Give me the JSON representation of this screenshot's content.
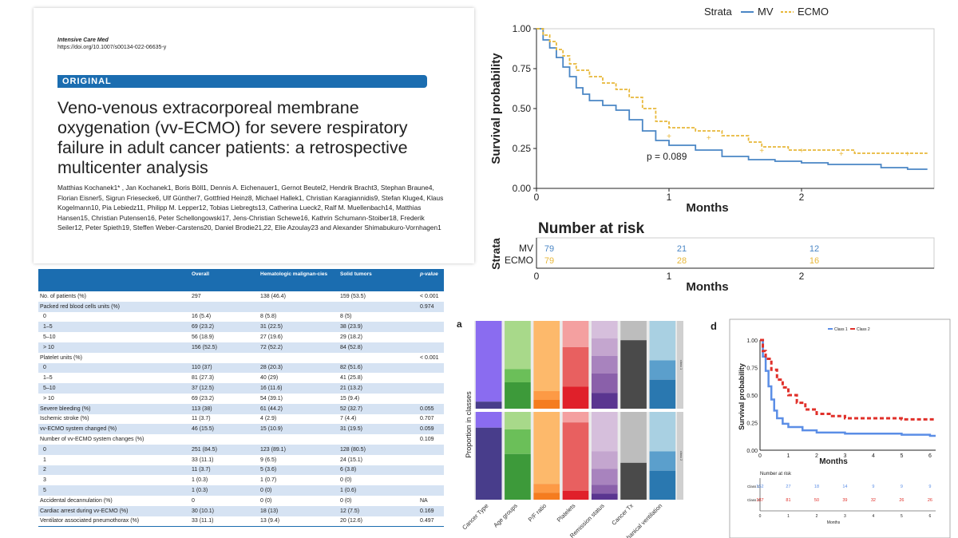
{
  "paper": {
    "journal": "Intensive Care Med",
    "doi": "https://doi.org/10.1007/s00134-022-06635-y",
    "article_type": "ORIGINAL",
    "title": "Veno-venous extracorporeal membrane oxygenation (vv-ECMO) for severe respiratory failure in adult cancer patients: a retrospective multicenter analysis",
    "authors": "Matthias Kochanek1* , Jan Kochanek1, Boris Böll1, Dennis A. Eichenauer1, Gernot Beutel2, Hendrik Bracht3, Stephan Braune4, Florian Eisner5, Sigrun Friesecke6, Ulf Günther7, Gottfried Heinz8, Michael Hallek1, Christian Karagiannidis9, Stefan Kluge4, Klaus Kogelmann10, Pia Lebiedz11, Philipp M. Lepper12, Tobias Liebregts13, Catherina Lueck2, Ralf M. Muellenbach14, Matthias Hansen15, Christian Putensen16, Peter Schellongowski17, Jens-Christian Schewe16, Kathrin Schumann-Stoiber18, Frederik Seiler12, Peter Spieth19, Steffen Weber-Carstens20, Daniel Brodie21,22, Elie Azoulay23 and Alexander Shimabukuro-Vornhagen1"
  },
  "table": {
    "headers": [
      "",
      "Overall",
      "Hematologic malignan-cies",
      "Solid tumors",
      "p-value"
    ],
    "rows": [
      {
        "label": "No. of patients (%)",
        "indent": false,
        "overall": "297",
        "heme": "138 (46.4)",
        "solid": "159 (53.5)",
        "p": "< 0.001"
      },
      {
        "label": "Packed red blood cells units (%)",
        "indent": false,
        "overall": "",
        "heme": "",
        "solid": "",
        "p": "0.974"
      },
      {
        "label": "0",
        "indent": true,
        "overall": "16 (5.4)",
        "heme": "8 (5.8)",
        "solid": "8 (5)",
        "p": ""
      },
      {
        "label": "1–5",
        "indent": true,
        "overall": "69 (23.2)",
        "heme": "31 (22.5)",
        "solid": "38 (23.9)",
        "p": ""
      },
      {
        "label": "5–10",
        "indent": true,
        "overall": "56 (18.9)",
        "heme": "27 (19.6)",
        "solid": "29 (18.2)",
        "p": ""
      },
      {
        "label": "> 10",
        "indent": true,
        "overall": "156 (52.5)",
        "heme": "72 (52.2)",
        "solid": "84 (52.8)",
        "p": ""
      },
      {
        "label": "Platelet units (%)",
        "indent": false,
        "overall": "",
        "heme": "",
        "solid": "",
        "p": "< 0.001"
      },
      {
        "label": "0",
        "indent": true,
        "overall": "110 (37)",
        "heme": "28 (20.3)",
        "solid": "82 (51.6)",
        "p": ""
      },
      {
        "label": "1–5",
        "indent": true,
        "overall": "81 (27.3)",
        "heme": "40 (29)",
        "solid": "41 (25.8)",
        "p": ""
      },
      {
        "label": "5–10",
        "indent": true,
        "overall": "37 (12.5)",
        "heme": "16 (11.6)",
        "solid": "21 (13.2)",
        "p": ""
      },
      {
        "label": "> 10",
        "indent": true,
        "overall": "69 (23.2)",
        "heme": "54 (39.1)",
        "solid": "15 (9.4)",
        "p": ""
      },
      {
        "label": "Severe bleeding (%)",
        "indent": false,
        "overall": "113 (38)",
        "heme": "61 (44.2)",
        "solid": "52 (32.7)",
        "p": "0.055"
      },
      {
        "label": "Ischemic stroke (%)",
        "indent": false,
        "overall": "11 (3.7)",
        "heme": "4 (2.9)",
        "solid": "7 (4.4)",
        "p": "0.707"
      },
      {
        "label": "vv-ECMO system changed (%)",
        "indent": false,
        "overall": "46 (15.5)",
        "heme": "15 (10.9)",
        "solid": "31 (19.5)",
        "p": "0.059"
      },
      {
        "label": "Number of vv-ECMO system changes (%)",
        "indent": false,
        "overall": "",
        "heme": "",
        "solid": "",
        "p": "0.109"
      },
      {
        "label": "0",
        "indent": true,
        "overall": "251 (84.5)",
        "heme": "123 (89.1)",
        "solid": "128 (80.5)",
        "p": ""
      },
      {
        "label": "1",
        "indent": true,
        "overall": "33 (11.1)",
        "heme": "9 (6.5)",
        "solid": "24 (15.1)",
        "p": ""
      },
      {
        "label": "2",
        "indent": true,
        "overall": "11 (3.7)",
        "heme": "5 (3.6)",
        "solid": "6 (3.8)",
        "p": ""
      },
      {
        "label": "3",
        "indent": true,
        "overall": "1 (0.3)",
        "heme": "1 (0.7)",
        "solid": "0 (0)",
        "p": ""
      },
      {
        "label": "5",
        "indent": true,
        "overall": "1 (0.3)",
        "heme": "0 (0)",
        "solid": "1 (0.6)",
        "p": ""
      },
      {
        "label": "Accidental decannulation (%)",
        "indent": false,
        "overall": "0",
        "heme": "0 (0)",
        "solid": "0 (0)",
        "p": "NA"
      },
      {
        "label": "Cardiac arrest during vv-ECMO (%)",
        "indent": false,
        "overall": "30 (10.1)",
        "heme": "18 (13)",
        "solid": "12 (7.5)",
        "p": "0.169"
      },
      {
        "label": "Ventilator associated pneumothorax (%)",
        "indent": false,
        "overall": "33 (11.1)",
        "heme": "13 (9.4)",
        "solid": "20 (12.6)",
        "p": "0.497"
      }
    ]
  },
  "chart_data": [
    {
      "type": "line",
      "title": "",
      "legend_title": "Strata",
      "xlabel": "Months",
      "ylabel": "Survival probability",
      "xlim": [
        0,
        3
      ],
      "ylim": [
        0,
        1
      ],
      "xticks": [
        "0",
        "1",
        "2"
      ],
      "yticks": [
        "0.00",
        "0.25",
        "0.50",
        "0.75",
        "1.00"
      ],
      "annotation": "p = 0.089",
      "colors": {
        "MV": "#4a86c5",
        "ECMO": "#e8b83a"
      },
      "series": [
        {
          "name": "MV",
          "x": [
            0,
            0.05,
            0.1,
            0.15,
            0.2,
            0.25,
            0.3,
            0.35,
            0.4,
            0.5,
            0.6,
            0.7,
            0.8,
            0.9,
            1.0,
            1.2,
            1.4,
            1.6,
            1.8,
            2.0,
            2.2,
            2.4,
            2.6,
            2.8,
            2.95
          ],
          "y": [
            1.0,
            0.93,
            0.88,
            0.82,
            0.76,
            0.7,
            0.63,
            0.59,
            0.55,
            0.52,
            0.49,
            0.43,
            0.36,
            0.3,
            0.27,
            0.24,
            0.2,
            0.18,
            0.17,
            0.16,
            0.15,
            0.15,
            0.13,
            0.12,
            0.12
          ]
        },
        {
          "name": "ECMO",
          "x": [
            0,
            0.05,
            0.1,
            0.15,
            0.2,
            0.25,
            0.3,
            0.4,
            0.5,
            0.6,
            0.7,
            0.8,
            0.9,
            1.0,
            1.2,
            1.4,
            1.6,
            1.7,
            1.9,
            2.0,
            2.2,
            2.4,
            2.5,
            2.95
          ],
          "y": [
            1.0,
            0.96,
            0.92,
            0.87,
            0.83,
            0.78,
            0.74,
            0.7,
            0.66,
            0.62,
            0.57,
            0.5,
            0.42,
            0.38,
            0.36,
            0.33,
            0.29,
            0.26,
            0.24,
            0.24,
            0.24,
            0.22,
            0.22,
            0.22
          ]
        }
      ],
      "risk_table": {
        "title": "Number at risk",
        "ylabel": "Strata",
        "xlabel": "Months",
        "times": [
          "0",
          "1",
          "2"
        ],
        "rows": [
          {
            "name": "MV",
            "values": [
              "79",
              "21",
              "12"
            ]
          },
          {
            "name": "ECMO",
            "values": [
              "79",
              "28",
              "16"
            ]
          }
        ]
      }
    },
    {
      "type": "bar",
      "panel_label": "a",
      "ylabel": "Proportion in classes",
      "categories": [
        "Cancer Type",
        "Age groups",
        "P/F ratio",
        "Platelets",
        "Remission status",
        "Cancer Tx",
        "Mechanical ventilation"
      ],
      "facets": [
        "class 1",
        "class 2"
      ],
      "palettes": [
        [
          "#8a6cf0",
          "#483d8b"
        ],
        [
          "#a8d98a",
          "#6bbf59",
          "#3d9a3a"
        ],
        [
          "#fdb96b",
          "#fd9a45",
          "#f57c1f"
        ],
        [
          "#f4a0a0",
          "#e86060",
          "#e0202a"
        ],
        [
          "#d6bfdc",
          "#c4a6cf",
          "#a883be",
          "#8a60aa",
          "#5a3590"
        ],
        [
          "#bdbdbd",
          "#4a4a4a"
        ],
        [
          "#a9d0e2",
          "#5b9fcc",
          "#2a78b0"
        ]
      ],
      "class1": [
        [
          0.92,
          0.08
        ],
        [
          0.55,
          0.15,
          0.3
        ],
        [
          0.8,
          0.1,
          0.1
        ],
        [
          0.3,
          0.45,
          0.25
        ],
        [
          0.2,
          0.2,
          0.2,
          0.22,
          0.18
        ],
        [
          0.22,
          0.78
        ],
        [
          0.45,
          0.22,
          0.33
        ]
      ],
      "class2": [
        [
          0.18,
          0.82
        ],
        [
          0.2,
          0.28,
          0.52
        ],
        [
          0.82,
          0.1,
          0.08
        ],
        [
          0.12,
          0.78,
          0.1
        ],
        [
          0.45,
          0.2,
          0.18,
          0.1,
          0.07
        ],
        [
          0.58,
          0.42
        ],
        [
          0.45,
          0.22,
          0.33
        ]
      ]
    },
    {
      "type": "line",
      "panel_label": "d",
      "xlabel": "Months",
      "ylabel": "Survival probability",
      "xlim": [
        0,
        6.2
      ],
      "ylim": [
        0,
        1
      ],
      "xticks": [
        "0",
        "1",
        "2",
        "3",
        "4",
        "5",
        "6"
      ],
      "yticks": [
        "0.00",
        "0.25",
        "0.50",
        "0.75",
        "1.00"
      ],
      "colors": {
        "Class 1": "#5b8ee6",
        "Class 2": "#e0302a"
      },
      "series": [
        {
          "name": "Class 1",
          "x": [
            0,
            0.1,
            0.2,
            0.3,
            0.4,
            0.5,
            0.6,
            0.8,
            1.0,
            1.5,
            2.0,
            3.0,
            4.0,
            5.0,
            6.0,
            6.2
          ],
          "y": [
            1.0,
            0.85,
            0.72,
            0.58,
            0.46,
            0.36,
            0.29,
            0.24,
            0.21,
            0.18,
            0.16,
            0.15,
            0.15,
            0.14,
            0.13,
            0.13
          ]
        },
        {
          "name": "Class 2",
          "x": [
            0,
            0.1,
            0.2,
            0.4,
            0.6,
            0.8,
            1.0,
            1.3,
            1.6,
            2.0,
            2.5,
            3.0,
            4.0,
            5.0,
            6.0,
            6.2
          ],
          "y": [
            1.0,
            0.9,
            0.83,
            0.73,
            0.64,
            0.57,
            0.5,
            0.43,
            0.37,
            0.33,
            0.31,
            0.29,
            0.29,
            0.28,
            0.28,
            0.28
          ]
        }
      ],
      "risk_table": {
        "title": "Number at risk",
        "xlabel": "Months",
        "times": [
          "0",
          "1",
          "2",
          "3",
          "4",
          "5",
          "6"
        ],
        "rows": [
          {
            "name": "Class 1",
            "values": [
              "152",
              "27",
              "18",
              "14",
              "9",
              "9",
              "9"
            ]
          },
          {
            "name": "Class 2",
            "values": [
              "187",
              "81",
              "50",
              "39",
              "32",
              "26",
              "26"
            ]
          }
        ]
      }
    }
  ]
}
